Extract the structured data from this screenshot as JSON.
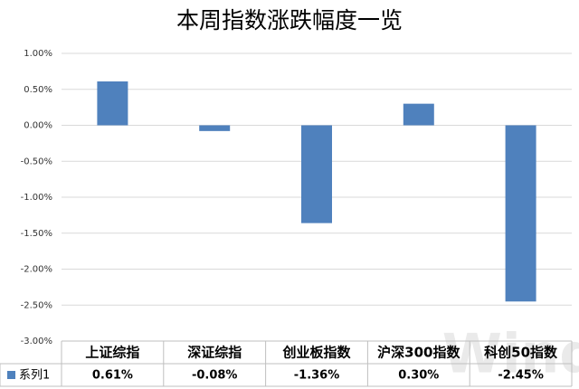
{
  "chart_data": {
    "type": "bar",
    "title": "本周指数涨跌幅度一览",
    "categories": [
      "上证综指",
      "深证综指",
      "创业板指数",
      "沪深300指数",
      "科创50指数"
    ],
    "series": [
      {
        "name": "系列1",
        "color": "#4f81bd",
        "values": [
          0.61,
          -0.08,
          -1.36,
          0.3,
          -2.45
        ],
        "value_labels": [
          "0.61%",
          "-0.08%",
          "-1.36%",
          "0.30%",
          "-2.45%"
        ]
      }
    ],
    "ylim": [
      -3,
      1
    ],
    "yticks": [
      {
        "value": 1,
        "label": "1.00%"
      },
      {
        "value": 0.5,
        "label": "0.50%"
      },
      {
        "value": 0,
        "label": "0.00%"
      },
      {
        "value": -0.5,
        "label": "-0.50%"
      },
      {
        "value": -1,
        "label": "-1.00%"
      },
      {
        "value": -1.5,
        "label": "-1.50%"
      },
      {
        "value": -2,
        "label": "-2.00%"
      },
      {
        "value": -2.5,
        "label": "-2.50%"
      },
      {
        "value": -3,
        "label": "-3.00%"
      }
    ],
    "grid": true,
    "watermark": "Wind"
  }
}
